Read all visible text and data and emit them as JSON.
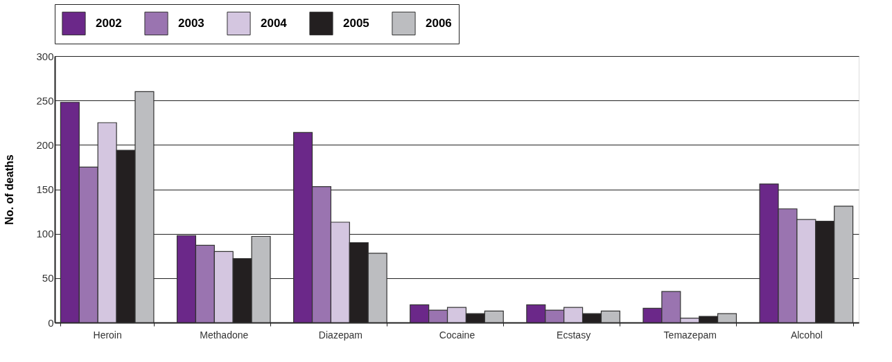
{
  "chart_data": {
    "type": "bar",
    "ylabel": "No. of deaths",
    "categories": [
      "Heroin",
      "Methadone",
      "Diazepam",
      "Cocaine",
      "Ecstasy",
      "Temazepam",
      "Alcohol"
    ],
    "series": [
      {
        "name": "2002",
        "color": "#6b2889",
        "values": [
          248,
          98,
          214,
          20,
          20,
          16,
          156
        ]
      },
      {
        "name": "2003",
        "color": "#9a74b0",
        "values": [
          175,
          87,
          153,
          14,
          14,
          35,
          128
        ]
      },
      {
        "name": "2004",
        "color": "#d4c6e0",
        "values": [
          225,
          80,
          113,
          17,
          17,
          5,
          116
        ]
      },
      {
        "name": "2005",
        "color": "#231f20",
        "values": [
          194,
          72,
          90,
          10,
          10,
          7,
          114
        ]
      },
      {
        "name": "2006",
        "color": "#bcbdc0",
        "values": [
          260,
          97,
          78,
          13,
          13,
          10,
          131
        ]
      }
    ],
    "ylim": [
      0,
      300
    ],
    "yticks": [
      0,
      50,
      100,
      150,
      200,
      250,
      300
    ],
    "grid": "y",
    "legend": "top"
  }
}
